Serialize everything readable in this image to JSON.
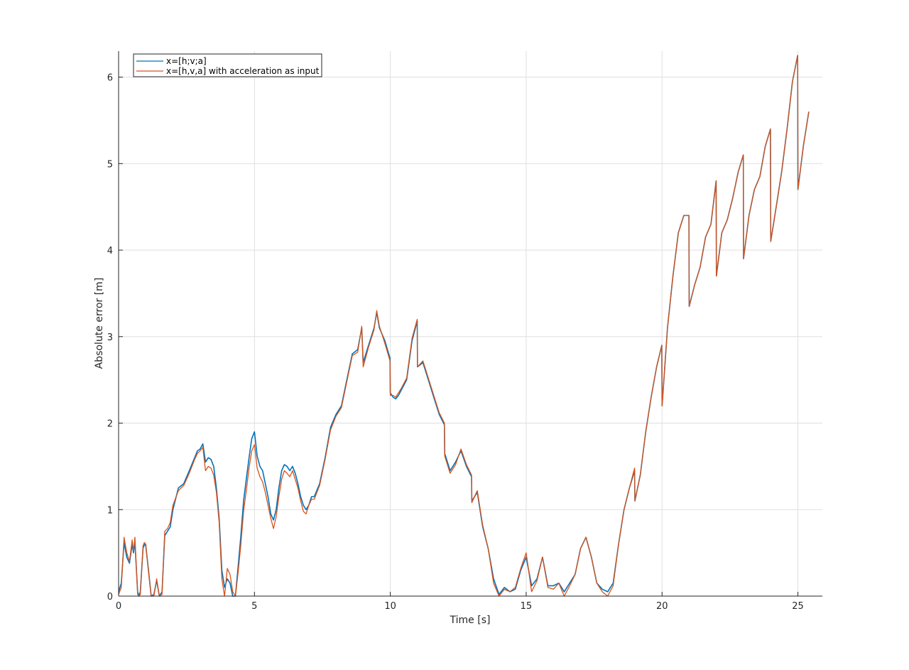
{
  "chart_data": {
    "type": "line",
    "title": "",
    "xlabel": "Time [s]",
    "ylabel": "Absolute error [m]",
    "xlim": [
      0,
      25.9
    ],
    "ylim": [
      0,
      6.3
    ],
    "xticks": [
      0,
      5,
      10,
      15,
      20,
      25
    ],
    "yticks": [
      0,
      1,
      2,
      3,
      4,
      5,
      6
    ],
    "grid": true,
    "legend_position": "top-left",
    "series": [
      {
        "name": "x=[h;v;a]",
        "color": "#0072BD",
        "x": [
          0,
          0.1,
          0.2,
          0.3,
          0.4,
          0.5,
          0.55,
          0.6,
          0.7,
          0.75,
          0.8,
          0.9,
          0.95,
          1.0,
          1.1,
          1.2,
          1.3,
          1.4,
          1.5,
          1.6,
          1.7,
          1.8,
          1.9,
          2.0,
          2.2,
          2.4,
          2.6,
          2.8,
          2.9,
          3.0,
          3.1,
          3.2,
          3.3,
          3.4,
          3.5,
          3.6,
          3.7,
          3.8,
          3.9,
          4.0,
          4.1,
          4.2,
          4.3,
          4.4,
          4.5,
          4.6,
          4.7,
          4.8,
          4.9,
          5.0,
          5.1,
          5.2,
          5.3,
          5.4,
          5.5,
          5.6,
          5.7,
          5.8,
          5.9,
          6.0,
          6.1,
          6.2,
          6.3,
          6.4,
          6.5,
          6.6,
          6.7,
          6.8,
          6.9,
          7.0,
          7.1,
          7.2,
          7.4,
          7.6,
          7.8,
          8.0,
          8.2,
          8.4,
          8.6,
          8.8,
          8.95,
          9.0,
          9.2,
          9.4,
          9.5,
          9.6,
          9.8,
          9.99,
          10.0,
          10.1,
          10.2,
          10.3,
          10.4,
          10.6,
          10.8,
          10.99,
          11.0,
          11.2,
          11.4,
          11.6,
          11.8,
          11.99,
          12.0,
          12.2,
          12.4,
          12.6,
          12.8,
          12.99,
          13.0,
          13.2,
          13.4,
          13.6,
          13.8,
          14.0,
          14.2,
          14.4,
          14.6,
          14.8,
          15.0,
          15.2,
          15.4,
          15.6,
          15.8,
          16.0,
          16.2,
          16.4,
          16.6,
          16.8,
          17.0,
          17.2,
          17.4,
          17.6,
          17.8,
          18.0,
          18.2,
          18.4,
          18.6,
          18.8,
          18.99,
          19.0,
          19.2,
          19.4,
          19.6,
          19.8,
          19.99,
          20.0,
          20.2,
          20.4,
          20.6,
          20.8,
          20.99,
          21.0,
          21.2,
          21.4,
          21.6,
          21.8,
          21.99,
          22.0,
          22.2,
          22.4,
          22.6,
          22.8,
          22.99,
          23.0,
          23.2,
          23.4,
          23.6,
          23.8,
          23.99,
          24.0,
          24.2,
          24.4,
          24.6,
          24.8,
          24.99,
          25.0,
          25.2,
          25.4
        ],
        "y": [
          0.05,
          0.15,
          0.62,
          0.45,
          0.38,
          0.6,
          0.5,
          0.62,
          0.05,
          0.0,
          0.05,
          0.55,
          0.6,
          0.58,
          0.3,
          0.0,
          0.02,
          0.18,
          0.0,
          0.05,
          0.7,
          0.75,
          0.8,
          1.0,
          1.25,
          1.3,
          1.45,
          1.6,
          1.68,
          1.7,
          1.76,
          1.55,
          1.6,
          1.58,
          1.5,
          1.25,
          0.9,
          0.3,
          0.1,
          0.2,
          0.15,
          0.0,
          0.0,
          0.35,
          0.7,
          1.1,
          1.35,
          1.6,
          1.82,
          1.9,
          1.62,
          1.5,
          1.45,
          1.3,
          1.15,
          0.95,
          0.88,
          1.0,
          1.25,
          1.45,
          1.52,
          1.5,
          1.45,
          1.5,
          1.42,
          1.3,
          1.15,
          1.05,
          1.0,
          1.05,
          1.15,
          1.15,
          1.3,
          1.6,
          1.95,
          2.1,
          2.2,
          2.5,
          2.8,
          2.85,
          3.1,
          2.7,
          2.9,
          3.1,
          3.28,
          3.1,
          2.95,
          2.75,
          2.35,
          2.3,
          2.28,
          2.32,
          2.38,
          2.5,
          2.95,
          3.18,
          2.65,
          2.7,
          2.5,
          2.3,
          2.1,
          1.98,
          1.65,
          1.45,
          1.55,
          1.68,
          1.5,
          1.38,
          1.1,
          1.2,
          0.8,
          0.55,
          0.2,
          0.02,
          0.1,
          0.05,
          0.08,
          0.3,
          0.45,
          0.12,
          0.2,
          0.45,
          0.12,
          0.12,
          0.15,
          0.05,
          0.15,
          0.25,
          0.55,
          0.68,
          0.45,
          0.15,
          0.08,
          0.05,
          0.15,
          0.6,
          1.0,
          1.25,
          1.45,
          1.1,
          1.4,
          1.9,
          2.3,
          2.65,
          2.9,
          2.2,
          3.1,
          3.7,
          4.2,
          4.4,
          4.4,
          3.35,
          3.6,
          3.8,
          4.15,
          4.3,
          4.8,
          3.7,
          4.2,
          4.35,
          4.6,
          4.9,
          5.1,
          3.9,
          4.4,
          4.7,
          4.85,
          5.2,
          5.4,
          4.1,
          4.5,
          4.9,
          5.4,
          5.95,
          6.25,
          4.7,
          5.2,
          5.6
        ]
      },
      {
        "name": "x=[h,v,a] with acceleration as input",
        "color": "#D95319",
        "x": [
          0,
          0.1,
          0.2,
          0.3,
          0.4,
          0.5,
          0.55,
          0.6,
          0.7,
          0.75,
          0.8,
          0.9,
          0.95,
          1.0,
          1.1,
          1.2,
          1.3,
          1.4,
          1.5,
          1.6,
          1.7,
          1.8,
          1.9,
          2.0,
          2.2,
          2.4,
          2.6,
          2.8,
          2.9,
          3.0,
          3.1,
          3.2,
          3.3,
          3.4,
          3.5,
          3.6,
          3.7,
          3.8,
          3.9,
          4.0,
          4.1,
          4.2,
          4.3,
          4.4,
          4.5,
          4.6,
          4.7,
          4.8,
          4.9,
          5.0,
          5.1,
          5.2,
          5.3,
          5.4,
          5.5,
          5.6,
          5.7,
          5.8,
          5.9,
          6.0,
          6.1,
          6.2,
          6.3,
          6.4,
          6.5,
          6.6,
          6.7,
          6.8,
          6.9,
          7.0,
          7.1,
          7.2,
          7.4,
          7.6,
          7.8,
          8.0,
          8.2,
          8.4,
          8.6,
          8.8,
          8.95,
          9.0,
          9.2,
          9.4,
          9.5,
          9.6,
          9.8,
          9.99,
          10.0,
          10.1,
          10.2,
          10.3,
          10.4,
          10.6,
          10.8,
          10.99,
          11.0,
          11.2,
          11.4,
          11.6,
          11.8,
          11.99,
          12.0,
          12.2,
          12.4,
          12.6,
          12.8,
          12.99,
          13.0,
          13.2,
          13.4,
          13.6,
          13.8,
          14.0,
          14.2,
          14.4,
          14.6,
          14.8,
          15.0,
          15.2,
          15.4,
          15.6,
          15.8,
          16.0,
          16.2,
          16.4,
          16.6,
          16.8,
          17.0,
          17.2,
          17.4,
          17.6,
          17.8,
          18.0,
          18.2,
          18.4,
          18.6,
          18.8,
          18.99,
          19.0,
          19.2,
          19.4,
          19.6,
          19.8,
          19.99,
          20.0,
          20.2,
          20.4,
          20.6,
          20.8,
          20.99,
          21.0,
          21.2,
          21.4,
          21.6,
          21.8,
          21.99,
          22.0,
          22.2,
          22.4,
          22.6,
          22.8,
          22.99,
          23.0,
          23.2,
          23.4,
          23.6,
          23.8,
          23.99,
          24.0,
          24.2,
          24.4,
          24.6,
          24.8,
          24.99,
          25.0,
          25.2,
          25.4
        ],
        "y": [
          0.02,
          0.1,
          0.68,
          0.5,
          0.4,
          0.65,
          0.52,
          0.68,
          0.02,
          0.0,
          0.02,
          0.58,
          0.62,
          0.6,
          0.28,
          0.0,
          0.0,
          0.2,
          0.0,
          0.02,
          0.75,
          0.78,
          0.85,
          1.05,
          1.22,
          1.28,
          1.42,
          1.58,
          1.65,
          1.68,
          1.72,
          1.45,
          1.5,
          1.48,
          1.4,
          1.2,
          0.85,
          0.2,
          0.0,
          0.32,
          0.25,
          0.05,
          0.0,
          0.28,
          0.6,
          0.98,
          1.22,
          1.48,
          1.68,
          1.75,
          1.48,
          1.38,
          1.32,
          1.2,
          1.05,
          0.9,
          0.78,
          0.92,
          1.15,
          1.35,
          1.45,
          1.42,
          1.38,
          1.45,
          1.35,
          1.25,
          1.1,
          0.98,
          0.95,
          1.05,
          1.12,
          1.12,
          1.28,
          1.58,
          1.92,
          2.08,
          2.18,
          2.48,
          2.78,
          2.82,
          3.12,
          2.65,
          2.88,
          3.08,
          3.3,
          3.12,
          2.92,
          2.72,
          2.32,
          2.32,
          2.3,
          2.35,
          2.4,
          2.52,
          2.98,
          3.2,
          2.65,
          2.72,
          2.52,
          2.32,
          2.12,
          2.0,
          1.62,
          1.42,
          1.52,
          1.7,
          1.52,
          1.4,
          1.08,
          1.22,
          0.82,
          0.55,
          0.15,
          0.0,
          0.08,
          0.05,
          0.1,
          0.32,
          0.5,
          0.05,
          0.18,
          0.45,
          0.1,
          0.08,
          0.15,
          0.0,
          0.12,
          0.25,
          0.55,
          0.68,
          0.45,
          0.15,
          0.05,
          0.0,
          0.12,
          0.6,
          1.0,
          1.25,
          1.48,
          1.1,
          1.4,
          1.9,
          2.3,
          2.65,
          2.9,
          2.2,
          3.1,
          3.7,
          4.2,
          4.4,
          4.4,
          3.35,
          3.6,
          3.8,
          4.15,
          4.3,
          4.8,
          3.7,
          4.2,
          4.35,
          4.6,
          4.9,
          5.1,
          3.9,
          4.4,
          4.7,
          4.85,
          5.2,
          5.4,
          4.1,
          4.5,
          4.9,
          5.4,
          5.95,
          6.25,
          4.7,
          5.2,
          5.6
        ]
      }
    ]
  }
}
